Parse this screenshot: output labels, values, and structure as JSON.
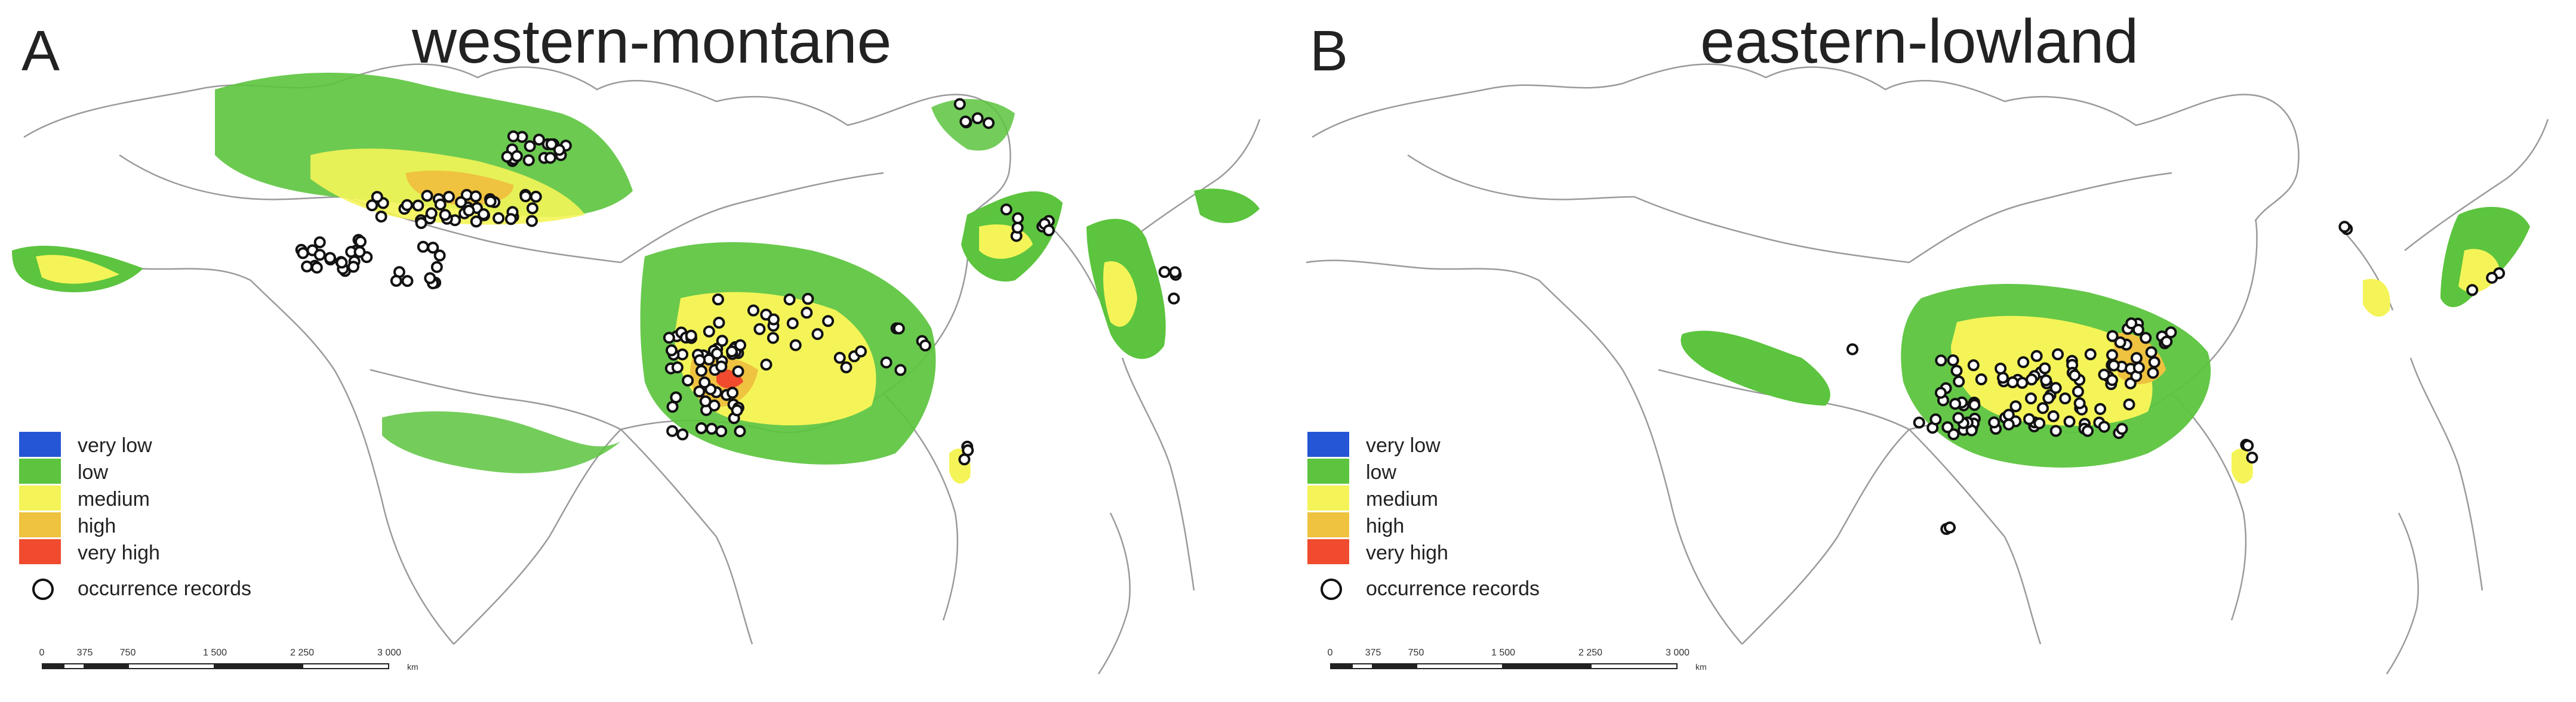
{
  "panels": [
    {
      "letter": "A",
      "title": "western-montane",
      "legend": {
        "items": [
          {
            "label": "very low",
            "color": "#2456d6"
          },
          {
            "label": "low",
            "color": "#5cc43e"
          },
          {
            "label": "medium",
            "color": "#f4f458"
          },
          {
            "label": "high",
            "color": "#efc23f"
          },
          {
            "label": "very high",
            "color": "#f04b2e"
          }
        ],
        "occurrence_label": "occurrence records"
      },
      "scalebar": {
        "ticks": [
          "0",
          "375",
          "750",
          "1 500",
          "2 250",
          "3 000"
        ],
        "unit": "km"
      }
    },
    {
      "letter": "B",
      "title": "eastern-lowland",
      "legend": {
        "items": [
          {
            "label": "very low",
            "color": "#2456d6"
          },
          {
            "label": "low",
            "color": "#5cc43e"
          },
          {
            "label": "medium",
            "color": "#f4f458"
          },
          {
            "label": "high",
            "color": "#efc23f"
          },
          {
            "label": "very high",
            "color": "#f04b2e"
          }
        ],
        "occurrence_label": "occurrence records"
      },
      "scalebar": {
        "ticks": [
          "0",
          "375",
          "750",
          "1 500",
          "2 250",
          "3 000"
        ],
        "unit": "km"
      }
    }
  ]
}
